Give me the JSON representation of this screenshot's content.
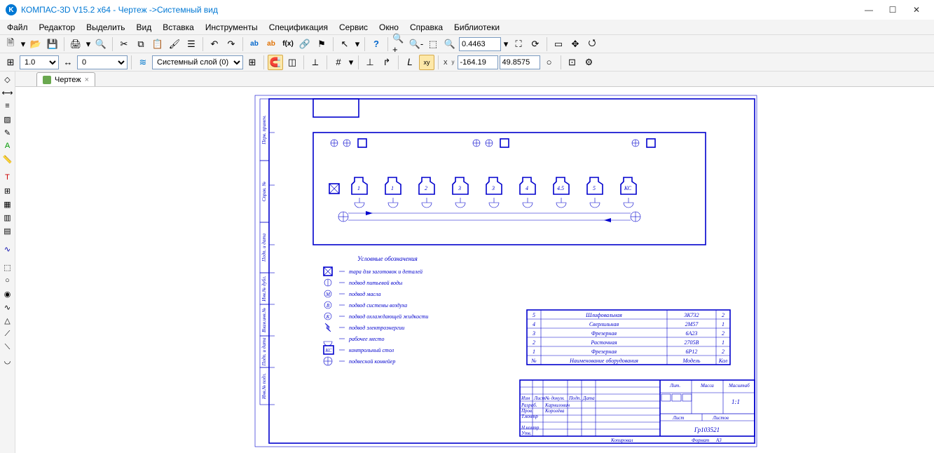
{
  "window": {
    "title": "КОМПАС-3D V15.2  x64 - Чертеж ->Системный вид",
    "app_icon_letter": "K"
  },
  "menu": {
    "items": [
      "Файл",
      "Редактор",
      "Выделить",
      "Вид",
      "Вставка",
      "Инструменты",
      "Спецификация",
      "Сервис",
      "Окно",
      "Справка",
      "Библиотеки"
    ]
  },
  "toolbar1": {
    "zoom_value": "0.4463",
    "icons_left": [
      "new",
      "rebuild",
      "open",
      "save",
      "print",
      "preview",
      "sep",
      "cut",
      "copy",
      "paste",
      "props",
      "copy-props",
      "sep",
      "undo",
      "redo",
      "sep",
      "variables",
      "vars-e",
      "fx",
      "link",
      "flag",
      "sep",
      "cursor",
      "sep",
      "context",
      "sep",
      "zoom-in",
      "zoom-out",
      "zoom-window",
      "zoom-prev"
    ],
    "icons_right": [
      "fit",
      "refresh",
      "sep",
      "scroll-frame",
      "pan",
      "orbit"
    ]
  },
  "toolbar2": {
    "scale_value": "1.0",
    "step_value": "0",
    "layer_label": "Системный слой (0)",
    "coord_x": "-164.19",
    "coord_y": "49.8575",
    "xy_label_x": "x",
    "xy_label_y": "y",
    "icons": [
      "step-combo",
      "sep",
      "layer-icon",
      "layer-combo",
      "layer-mgr",
      "sep",
      "magnet",
      "ortho",
      "sep",
      "constraint",
      "sep",
      "grid",
      "sep",
      "perp",
      "tangent",
      "sep",
      "local-cs",
      "dim-xy",
      "sep",
      "snap-toggle"
    ]
  },
  "left_tools": {
    "groups": [
      [
        "geometry",
        "arc",
        "bezier",
        "dim",
        "hatch",
        "spline",
        "line-style"
      ],
      [
        "text",
        "table",
        "face",
        "surface",
        "roughness",
        "form"
      ],
      [
        "params"
      ],
      [
        "select",
        "trim",
        "rotate",
        "sym",
        "scale",
        "move",
        "chamfer",
        "fillet"
      ]
    ]
  },
  "tabs": {
    "doc_name": "Чертеж"
  },
  "drawing": {
    "colors": {
      "line": "#0000cd",
      "bg": "#ffffff"
    },
    "legend_title": "Условные обозначения",
    "legend": [
      {
        "sym": "box-x",
        "text": "тара для заготовок и деталей"
      },
      {
        "sym": "circ-arrow",
        "text": "подвод питьевой воды"
      },
      {
        "sym": "circ-M",
        "text": "подвод масла"
      },
      {
        "sym": "circ-B",
        "text": "подвод системы воздуха"
      },
      {
        "sym": "circ-K",
        "text": "подвод охлаждающей жидкости"
      },
      {
        "sym": "bolt",
        "text": "подвод электроэнергии"
      },
      {
        "sym": "worker",
        "text": "рабочее место"
      },
      {
        "sym": "KC",
        "text": "контрольный стол"
      },
      {
        "sym": "conveyor",
        "text": "подвесной конвейер"
      }
    ],
    "stations": [
      {
        "n": "1"
      },
      {
        "n": "1"
      },
      {
        "n": "2"
      },
      {
        "n": "3"
      },
      {
        "n": "3"
      },
      {
        "n": "4"
      },
      {
        "n": "4.5"
      },
      {
        "n": "5"
      },
      {
        "n": "КС"
      }
    ],
    "equip_table": {
      "header": {
        "n": "№",
        "name": "Наименование оборудования",
        "model": "Модель",
        "qty": "Кол"
      },
      "rows": [
        {
          "n": "5",
          "name": "Шлифовальная",
          "model": "3К732",
          "qty": "2"
        },
        {
          "n": "4",
          "name": "Сверлильная",
          "model": "2М57",
          "qty": "1"
        },
        {
          "n": "3",
          "name": "Фрезерная",
          "model": "6А23",
          "qty": "2"
        },
        {
          "n": "2",
          "name": "Расточная",
          "model": "2705В",
          "qty": "1"
        },
        {
          "n": "1",
          "name": "Фрезерная",
          "model": "6Р12",
          "qty": "2"
        }
      ]
    },
    "title_block": {
      "roles": [
        "Разраб.",
        "Пров.",
        "Т.контр",
        "",
        "Н.контр",
        "Утв."
      ],
      "role_header": [
        "Изм",
        "Лист",
        "№ докум.",
        "Подп.",
        "Дата"
      ],
      "developers": [
        "Карнилович",
        "Королёва"
      ],
      "lit": "Лит.",
      "massa": "Масса",
      "mash": "Масштаб",
      "scale": "1:1",
      "list": "Лист",
      "listov": "Листов",
      "code": "Гр103521",
      "footer_left": "Копировал",
      "footer_right": "Формат",
      "footer_fmt": "А3"
    },
    "side_labels": [
      "Перв. примен.",
      "Справ. №",
      "Подп. и дата",
      "Инв.№ дубл.",
      "Взам.инв.№",
      "Подп. и дата",
      "Инв.№ подл."
    ]
  }
}
